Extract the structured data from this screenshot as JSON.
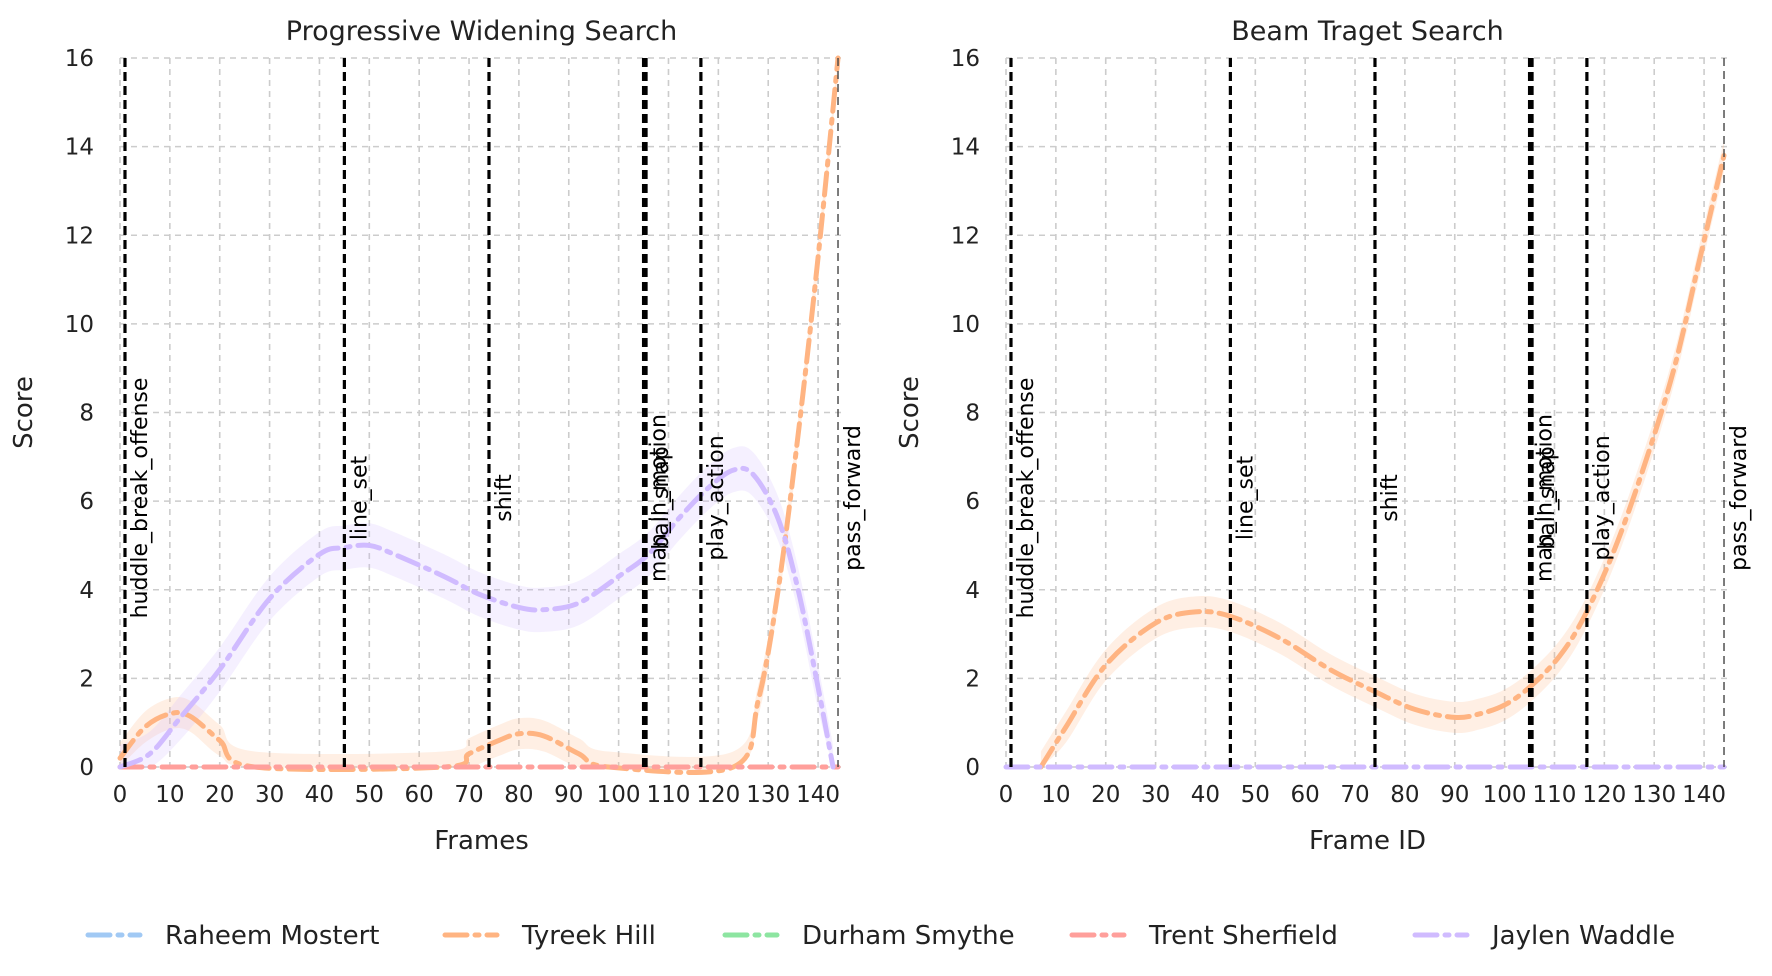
{
  "legend": [
    {
      "name": "Raheem Mostert",
      "color": "#a1c9f4"
    },
    {
      "name": "Tyreek Hill",
      "color": "#ffb482"
    },
    {
      "name": "Durham Smythe",
      "color": "#8de5a1"
    },
    {
      "name": "Trent Sherfield",
      "color": "#ff9f9b"
    },
    {
      "name": "Jaylen Waddle",
      "color": "#d0bbff"
    }
  ],
  "chart_data": [
    {
      "type": "line",
      "title": "Progressive Widening Search",
      "xlabel": "Frames",
      "ylabel": "Score",
      "xlim": [
        0,
        145
      ],
      "ylim": [
        0,
        16
      ],
      "grid": true,
      "legend_position": "bottom",
      "xticks": [
        "0",
        "10",
        "20",
        "30",
        "40",
        "50",
        "60",
        "70",
        "80",
        "90",
        "100",
        "110",
        "120",
        "130",
        "140"
      ],
      "yticks": [
        "0",
        "2",
        "4",
        "6",
        "8",
        "10",
        "12",
        "14",
        "16"
      ],
      "events": [
        {
          "label": "huddle_break_offense",
          "x": 1,
          "style": "dashed-bold"
        },
        {
          "label": "line_set",
          "x": 45,
          "style": "dashed-bold"
        },
        {
          "label": "shift",
          "x": 74,
          "style": "dashed-bold"
        },
        {
          "label": "man_in_motion",
          "x": 105,
          "style": "dashed-bold"
        },
        {
          "label": "ball_snap",
          "x": 105.5,
          "style": "dashed-bold"
        },
        {
          "label": "play_action",
          "x": 116.5,
          "style": "dashed-bold"
        },
        {
          "label": "pass_forward",
          "x": 144,
          "style": "dashed-thin"
        }
      ],
      "series": [
        {
          "name": "Tyreek Hill",
          "color": "#ffb482",
          "points": [
            [
              0,
              0.2
            ],
            [
              5,
              0.9
            ],
            [
              10,
              1.2
            ],
            [
              14,
              1.15
            ],
            [
              20,
              0.6
            ],
            [
              27,
              0
            ],
            [
              65,
              0
            ],
            [
              70,
              0.3
            ],
            [
              76,
              0.6
            ],
            [
              80,
              0.75
            ],
            [
              85,
              0.7
            ],
            [
              92,
              0.3
            ],
            [
              98,
              0
            ],
            [
              123,
              0
            ],
            [
              128,
              1.5
            ],
            [
              132,
              4
            ],
            [
              136,
              7.5
            ],
            [
              140,
              11.5
            ],
            [
              144,
              16
            ]
          ],
          "band": 0.35
        },
        {
          "name": "Trent Sherfield",
          "color": "#ff9f9b",
          "points": [
            [
              0,
              0
            ],
            [
              144,
              0
            ]
          ],
          "band": 0
        },
        {
          "name": "Jaylen Waddle",
          "color": "#d0bbff",
          "points": [
            [
              0,
              0
            ],
            [
              6,
              0.3
            ],
            [
              12,
              1.1
            ],
            [
              20,
              2.2
            ],
            [
              30,
              3.8
            ],
            [
              40,
              4.8
            ],
            [
              45,
              4.95
            ],
            [
              50,
              5.0
            ],
            [
              55,
              4.8
            ],
            [
              65,
              4.3
            ],
            [
              72,
              3.9
            ],
            [
              80,
              3.6
            ],
            [
              85,
              3.55
            ],
            [
              92,
              3.7
            ],
            [
              100,
              4.3
            ],
            [
              106,
              4.8
            ],
            [
              112,
              5.6
            ],
            [
              118,
              6.3
            ],
            [
              123,
              6.7
            ],
            [
              127,
              6.6
            ],
            [
              132,
              5.6
            ],
            [
              136,
              4.0
            ],
            [
              140,
              1.8
            ],
            [
              143,
              0
            ]
          ],
          "band": 0.5
        }
      ]
    },
    {
      "type": "line",
      "title": "Beam Traget Search",
      "xlabel": "Frame ID",
      "ylabel": "Score",
      "xlim": [
        0,
        145
      ],
      "ylim": [
        0,
        16
      ],
      "grid": true,
      "legend_position": "bottom",
      "xticks": [
        "0",
        "10",
        "20",
        "30",
        "40",
        "50",
        "60",
        "70",
        "80",
        "90",
        "100",
        "110",
        "120",
        "130",
        "140"
      ],
      "yticks": [
        "0",
        "2",
        "4",
        "6",
        "8",
        "10",
        "12",
        "14",
        "16"
      ],
      "events": [
        {
          "label": "huddle_break_offense",
          "x": 1,
          "style": "dashed-bold"
        },
        {
          "label": "line_set",
          "x": 45,
          "style": "dashed-bold"
        },
        {
          "label": "shift",
          "x": 74,
          "style": "dashed-bold"
        },
        {
          "label": "man_in_motion",
          "x": 105,
          "style": "dashed-bold"
        },
        {
          "label": "ball_snap",
          "x": 105.5,
          "style": "dashed-bold"
        },
        {
          "label": "play_action",
          "x": 116.5,
          "style": "dashed-bold"
        },
        {
          "label": "pass_forward",
          "x": 144,
          "style": "dashed-thin"
        }
      ],
      "series": [
        {
          "name": "Tyreek Hill",
          "color": "#ffb482",
          "points": [
            [
              7,
              0
            ],
            [
              12,
              0.9
            ],
            [
              20,
              2.3
            ],
            [
              30,
              3.25
            ],
            [
              38,
              3.5
            ],
            [
              45,
              3.4
            ],
            [
              55,
              2.9
            ],
            [
              65,
              2.2
            ],
            [
              74,
              1.7
            ],
            [
              82,
              1.3
            ],
            [
              90,
              1.12
            ],
            [
              95,
              1.2
            ],
            [
              100,
              1.4
            ],
            [
              105,
              1.8
            ],
            [
              111,
              2.5
            ],
            [
              116,
              3.4
            ],
            [
              122,
              4.9
            ],
            [
              128,
              6.8
            ],
            [
              134,
              9.0
            ],
            [
              139,
              11.4
            ],
            [
              144,
              13.8
            ]
          ],
          "band": 0.35
        },
        {
          "name": "Jaylen Waddle",
          "color": "#d0bbff",
          "points": [
            [
              0,
              0
            ],
            [
              144,
              0
            ]
          ],
          "band": 0
        }
      ]
    }
  ]
}
